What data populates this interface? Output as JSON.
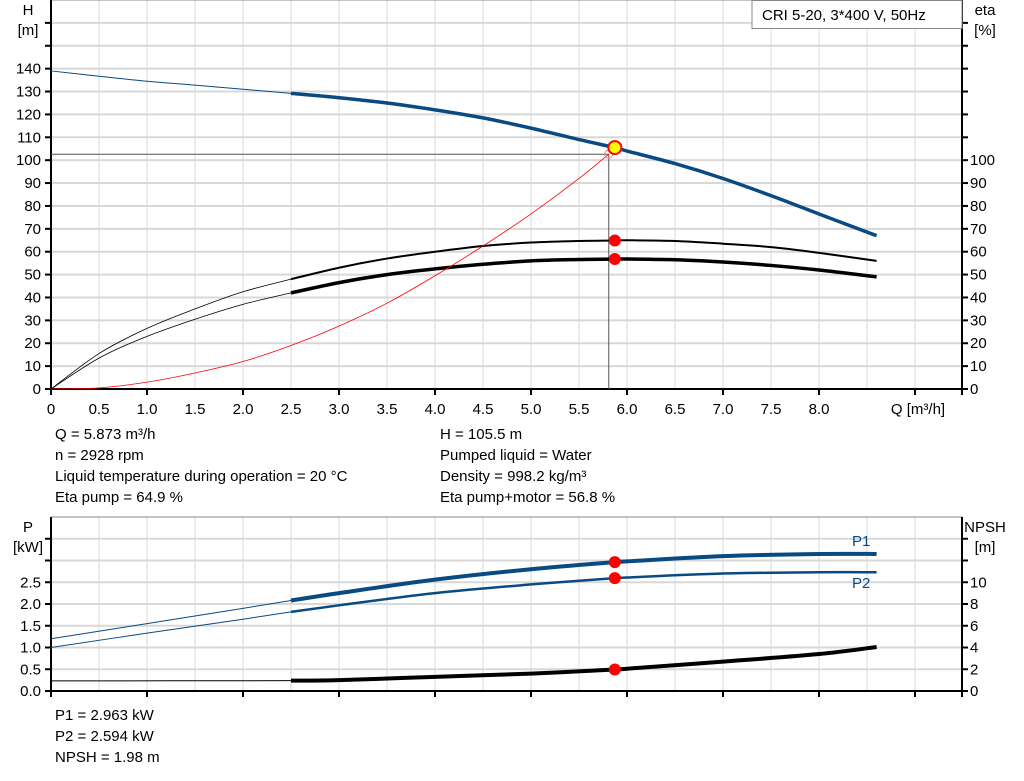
{
  "title": "CRI 5-20, 3*400 V, 50Hz",
  "colors": {
    "head": "#0a4a82",
    "eta": "#000000",
    "system": "#ff0000",
    "point": "#ff0000",
    "point_fill_duty": "#ffff00",
    "grid": "#d8d8d8"
  },
  "chart_data": [
    {
      "type": "line",
      "xlabel": "Q [m³/h]",
      "ylabel_left": [
        "H",
        "[m]"
      ],
      "ylabel_right": [
        "eta",
        "[%]"
      ],
      "xlim": [
        0,
        9.5
      ],
      "ylim_left": [
        0,
        170
      ],
      "ylim_right": [
        0,
        170
      ],
      "grid": true,
      "x_ticks": [
        "0",
        "0.5",
        "1.0",
        "1.5",
        "2.0",
        "2.5",
        "3.0",
        "3.5",
        "4.0",
        "4.5",
        "5.0",
        "5.5",
        "6.0",
        "6.5",
        "7.0",
        "7.5",
        "8.0"
      ],
      "y_ticks_left": [
        "0",
        "10",
        "20",
        "30",
        "40",
        "50",
        "60",
        "70",
        "80",
        "90",
        "100",
        "110",
        "120",
        "130",
        "140"
      ],
      "y_ticks_right": [
        "0",
        "10",
        "20",
        "30",
        "40",
        "50",
        "60",
        "70",
        "80",
        "90",
        "100"
      ],
      "series": [
        {
          "id": "H",
          "axis": "left",
          "x": [
            0,
            0.5,
            1,
            1.5,
            2,
            2.5,
            3,
            3.5,
            4,
            4.5,
            5,
            5.5,
            5.873,
            6,
            6.5,
            7,
            7.5,
            8,
            8.6
          ],
          "y": [
            139,
            136.7,
            134.5,
            132.8,
            131,
            129.2,
            127.3,
            125,
            122,
            118.5,
            114,
            109,
            105.5,
            104,
            98.5,
            92,
            84.5,
            76.5,
            67
          ]
        },
        {
          "id": "eta_pump",
          "axis": "right",
          "x": [
            0,
            0.5,
            1,
            1.5,
            2,
            2.5,
            3,
            3.5,
            4,
            4.5,
            5,
            5.5,
            5.873,
            6,
            6.5,
            7,
            7.5,
            8,
            8.6
          ],
          "y": [
            0,
            15.5,
            26.5,
            35,
            42.5,
            48,
            53,
            57,
            60,
            62.5,
            64,
            64.7,
            64.9,
            65,
            64.7,
            63.5,
            62,
            59.5,
            56
          ]
        },
        {
          "id": "eta_pump_motor",
          "axis": "right",
          "x": [
            0,
            0.5,
            1,
            1.5,
            2,
            2.5,
            3,
            3.5,
            4,
            4.5,
            5,
            5.5,
            5.873,
            6,
            6.5,
            7,
            7.5,
            8,
            8.6
          ],
          "y": [
            0,
            13.5,
            23,
            30.5,
            37,
            42,
            46.5,
            50,
            52.5,
            54.5,
            56,
            56.6,
            56.8,
            56.8,
            56.5,
            55.5,
            54,
            52,
            49
          ]
        },
        {
          "id": "system",
          "axis": "left",
          "x": [
            0,
            0.5,
            1,
            1.5,
            2,
            2.5,
            3,
            3.5,
            4,
            4.5,
            5,
            5.5,
            5.81
          ],
          "y": [
            0,
            0.5,
            3,
            7,
            12,
            19,
            27.5,
            37.5,
            49.5,
            62.5,
            76.5,
            92,
            102.6
          ]
        }
      ],
      "duty_point": {
        "Q": 5.873,
        "H": 105.5,
        "eta_pump": 64.9,
        "eta_pump_motor": 56.8
      },
      "requested_point": {
        "Q": 5.81,
        "H": 102.6
      }
    },
    {
      "type": "line",
      "ylabel_left": [
        "P",
        "[kW]"
      ],
      "ylabel_right": [
        "NPSH",
        "[m]"
      ],
      "xlim": [
        0,
        9.5
      ],
      "ylim_left": [
        0,
        4.0
      ],
      "ylim_right": [
        0,
        16
      ],
      "grid": true,
      "y_ticks_left": [
        "0.0",
        "0.5",
        "1.0",
        "1.5",
        "2.0",
        "2.5"
      ],
      "y_ticks_right": [
        "0",
        "2",
        "4",
        "6",
        "8",
        "10"
      ],
      "series": [
        {
          "id": "P1",
          "name": "P1",
          "axis": "left",
          "x": [
            0,
            1,
            2,
            2.5,
            3,
            4,
            5,
            5.873,
            6,
            7,
            8,
            8.6
          ],
          "y": [
            1.2,
            1.55,
            1.9,
            2.08,
            2.25,
            2.56,
            2.8,
            2.963,
            2.98,
            3.1,
            3.15,
            3.15
          ]
        },
        {
          "id": "P2",
          "name": "P2",
          "axis": "left",
          "x": [
            0,
            1,
            2,
            2.5,
            3,
            4,
            5,
            5.873,
            6,
            7,
            8,
            8.6
          ],
          "y": [
            1.0,
            1.33,
            1.65,
            1.82,
            1.97,
            2.25,
            2.45,
            2.594,
            2.61,
            2.7,
            2.73,
            2.73
          ]
        },
        {
          "id": "NPSH",
          "axis": "right",
          "x": [
            0,
            2.5,
            3,
            4,
            5,
            5.873,
            6,
            7,
            8,
            8.6
          ],
          "y": [
            0.93,
            0.95,
            1.0,
            1.3,
            1.6,
            1.98,
            2.05,
            2.7,
            3.4,
            4.05
          ]
        }
      ],
      "duty_point": {
        "Q": 5.873,
        "P1": 2.963,
        "P2": 2.594,
        "NPSH": 1.98
      }
    }
  ],
  "info_top": {
    "left": [
      "Q = 5.873 m³/h",
      "n = 2928 rpm",
      "Liquid temperature during operation = 20 °C",
      "Eta pump = 64.9 %"
    ],
    "right": [
      "H = 105.5 m",
      "Pumped liquid = Water",
      "Density = 998.2 kg/m³",
      "Eta pump+motor = 56.8 %"
    ]
  },
  "info_bottom": [
    "P1 = 2.963 kW",
    "P2 = 2.594 kW",
    "NPSH = 1.98 m"
  ]
}
